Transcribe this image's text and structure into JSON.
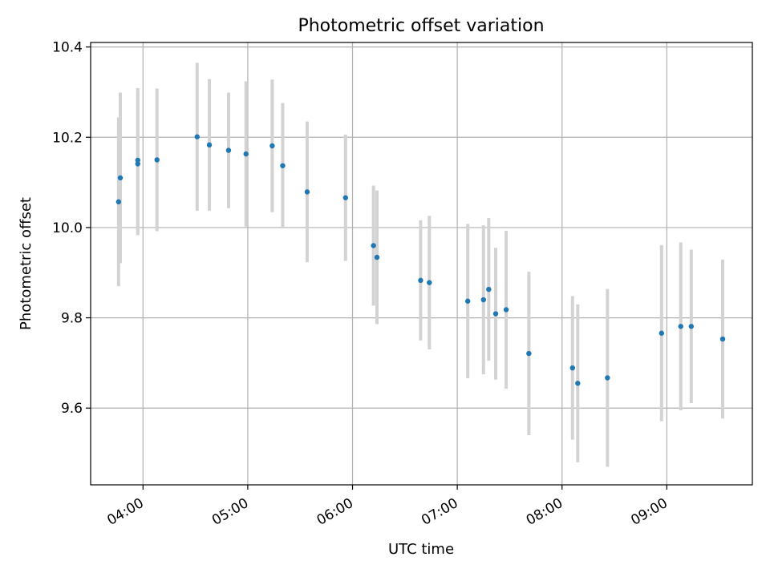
{
  "chart_data": {
    "type": "scatter",
    "title": "Photometric offset variation",
    "xlabel": "UTC time",
    "ylabel": "Photometric offset",
    "x_axis_type": "time",
    "xlim": [
      "03:30",
      "09:49"
    ],
    "ylim": [
      9.43,
      10.41
    ],
    "grid": true,
    "x_tick_labels": [
      "04:00",
      "05:00",
      "06:00",
      "07:00",
      "08:00",
      "09:00"
    ],
    "y_tick_labels": [
      "9.6",
      "9.8",
      "10.0",
      "10.2",
      "10.4"
    ],
    "colors": {
      "point": "#1f77b4",
      "errorbar": "#d3d3d3",
      "grid": "#b0b0b0"
    },
    "series": [
      {
        "points": [
          {
            "x": "03:46",
            "y": 10.057,
            "err": 0.187
          },
          {
            "x": "03:47",
            "y": 10.11,
            "err": 0.189
          },
          {
            "x": "03:57",
            "y": 10.149,
            "err": 0.16
          },
          {
            "x": "03:57",
            "y": 10.141,
            "err": 0.158
          },
          {
            "x": "04:08",
            "y": 10.15,
            "err": 0.158
          },
          {
            "x": "04:31",
            "y": 10.201,
            "err": 0.164
          },
          {
            "x": "04:38",
            "y": 10.183,
            "err": 0.146
          },
          {
            "x": "04:49",
            "y": 10.171,
            "err": 0.128
          },
          {
            "x": "04:59",
            "y": 10.163,
            "err": 0.161
          },
          {
            "x": "05:14",
            "y": 10.181,
            "err": 0.147
          },
          {
            "x": "05:20",
            "y": 10.137,
            "err": 0.139
          },
          {
            "x": "05:34",
            "y": 10.079,
            "err": 0.156
          },
          {
            "x": "05:56",
            "y": 10.066,
            "err": 0.14
          },
          {
            "x": "06:12",
            "y": 9.96,
            "err": 0.133
          },
          {
            "x": "06:14",
            "y": 9.934,
            "err": 0.148
          },
          {
            "x": "06:39",
            "y": 9.883,
            "err": 0.133
          },
          {
            "x": "06:44",
            "y": 9.878,
            "err": 0.148
          },
          {
            "x": "07:06",
            "y": 9.837,
            "err": 0.171
          },
          {
            "x": "07:15",
            "y": 9.84,
            "err": 0.165
          },
          {
            "x": "07:18",
            "y": 9.863,
            "err": 0.158
          },
          {
            "x": "07:22",
            "y": 9.809,
            "err": 0.146
          },
          {
            "x": "07:28",
            "y": 9.818,
            "err": 0.175
          },
          {
            "x": "07:41",
            "y": 9.721,
            "err": 0.181
          },
          {
            "x": "08:06",
            "y": 9.689,
            "err": 0.159
          },
          {
            "x": "08:09",
            "y": 9.655,
            "err": 0.175
          },
          {
            "x": "08:26",
            "y": 9.667,
            "err": 0.197
          },
          {
            "x": "08:57",
            "y": 9.766,
            "err": 0.195
          },
          {
            "x": "09:08",
            "y": 9.781,
            "err": 0.186
          },
          {
            "x": "09:14",
            "y": 9.781,
            "err": 0.17
          },
          {
            "x": "09:32",
            "y": 9.753,
            "err": 0.176
          }
        ]
      }
    ]
  }
}
